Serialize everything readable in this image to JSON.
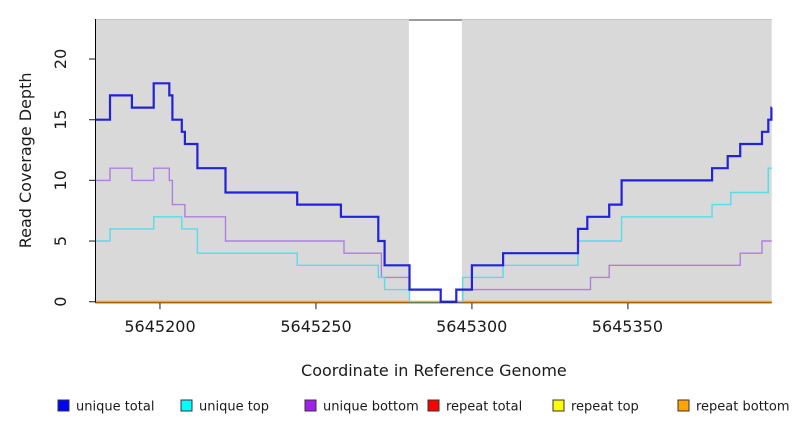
{
  "chart_data": {
    "type": "line",
    "subtype": "step",
    "title": "",
    "xlabel": "Coordinate in Reference Genome",
    "ylabel": "Read Coverage Depth",
    "xlim": [
      5645179.5,
      5645396.1
    ],
    "ylim": [
      0,
      23.3
    ],
    "grid": false,
    "panel_background": "#D9D9D9",
    "gap_region": {
      "from": 5645279.8,
      "to": 5645296.8,
      "color": "#FFFFFF",
      "top_edge_color": "#9C9C9C"
    },
    "x_ticks": [
      {
        "value": 5645200,
        "label": "5645200"
      },
      {
        "value": 5645250,
        "label": "5645250"
      },
      {
        "value": 5645300,
        "label": "5645300"
      },
      {
        "value": 5645350,
        "label": "5645350"
      }
    ],
    "y_ticks": [
      {
        "value": 0,
        "label": "0"
      },
      {
        "value": 5,
        "label": "5"
      },
      {
        "value": 10,
        "label": "10"
      },
      {
        "value": 15,
        "label": "15"
      },
      {
        "value": 20,
        "label": "20"
      }
    ],
    "series": [
      {
        "name": "repeat-total",
        "legend_label": "repeat total",
        "color": "#DD2222",
        "width": 1.4,
        "points": [
          [
            5645179.5,
            0
          ]
        ]
      },
      {
        "name": "repeat-top",
        "legend_label": "repeat top",
        "color": "#EEEE22",
        "width": 1.4,
        "points": [
          [
            5645179.5,
            0
          ]
        ]
      },
      {
        "name": "repeat-bottom",
        "legend_label": "repeat bottom",
        "color": "#FFA500",
        "width": 1.8,
        "points": [
          [
            5645179.5,
            0
          ]
        ]
      },
      {
        "name": "unique-bottom",
        "legend_label": "unique bottom",
        "color": "#AE7FDE",
        "width": 1.4,
        "points": [
          [
            5645179.5,
            10
          ],
          [
            5645184,
            11
          ],
          [
            5645191,
            10
          ],
          [
            5645198,
            11
          ],
          [
            5645203,
            10
          ],
          [
            5645204,
            8
          ],
          [
            5645208,
            7
          ],
          [
            5645221,
            5
          ],
          [
            5645259,
            4
          ],
          [
            5645271,
            2
          ],
          [
            5645280,
            1
          ],
          [
            5645290,
            0
          ],
          [
            5645297,
            1
          ],
          [
            5645338,
            2
          ],
          [
            5645344,
            3
          ],
          [
            5645386,
            4
          ],
          [
            5645393,
            5
          ]
        ]
      },
      {
        "name": "unique-top",
        "legend_label": "unique top",
        "color": "#55DDE8",
        "width": 1.4,
        "points": [
          [
            5645179.5,
            5
          ],
          [
            5645184,
            6
          ],
          [
            5645198,
            7
          ],
          [
            5645207,
            6
          ],
          [
            5645212,
            4
          ],
          [
            5645244,
            3
          ],
          [
            5645270,
            2
          ],
          [
            5645272,
            1
          ],
          [
            5645280,
            0
          ],
          [
            5645297,
            2
          ],
          [
            5645310,
            3
          ],
          [
            5645334,
            5
          ],
          [
            5645348,
            7
          ],
          [
            5645377,
            8
          ],
          [
            5645383,
            9
          ],
          [
            5645395,
            11
          ]
        ]
      },
      {
        "name": "unique-total",
        "legend_label": "unique total",
        "color": "#2222DD",
        "width": 2.2,
        "points": [
          [
            5645179.5,
            15
          ],
          [
            5645184,
            17
          ],
          [
            5645191,
            16
          ],
          [
            5645198,
            18
          ],
          [
            5645203,
            17
          ],
          [
            5645204,
            15
          ],
          [
            5645207,
            14
          ],
          [
            5645208,
            13
          ],
          [
            5645212,
            11
          ],
          [
            5645221,
            9
          ],
          [
            5645244,
            8
          ],
          [
            5645258,
            7
          ],
          [
            5645270,
            5
          ],
          [
            5645272,
            3
          ],
          [
            5645280,
            1
          ],
          [
            5645290,
            0
          ],
          [
            5645295,
            1
          ],
          [
            5645300,
            3
          ],
          [
            5645310,
            4
          ],
          [
            5645334,
            6
          ],
          [
            5645337,
            7
          ],
          [
            5645344,
            8
          ],
          [
            5645348,
            10
          ],
          [
            5645377,
            11
          ],
          [
            5645382,
            12
          ],
          [
            5645386,
            13
          ],
          [
            5645393,
            14
          ],
          [
            5645395,
            15
          ],
          [
            5645396,
            16
          ]
        ]
      }
    ],
    "legend_position": "bottom",
    "legend": [
      {
        "label": "unique total",
        "color": "#0000FF"
      },
      {
        "label": "unique top",
        "color": "#00FFFF"
      },
      {
        "label": "unique bottom",
        "color": "#A020F0"
      },
      {
        "label": "repeat total",
        "color": "#FF0000"
      },
      {
        "label": "repeat top",
        "color": "#FFFF00"
      },
      {
        "label": "repeat bottom",
        "color": "#FFA500"
      }
    ]
  }
}
